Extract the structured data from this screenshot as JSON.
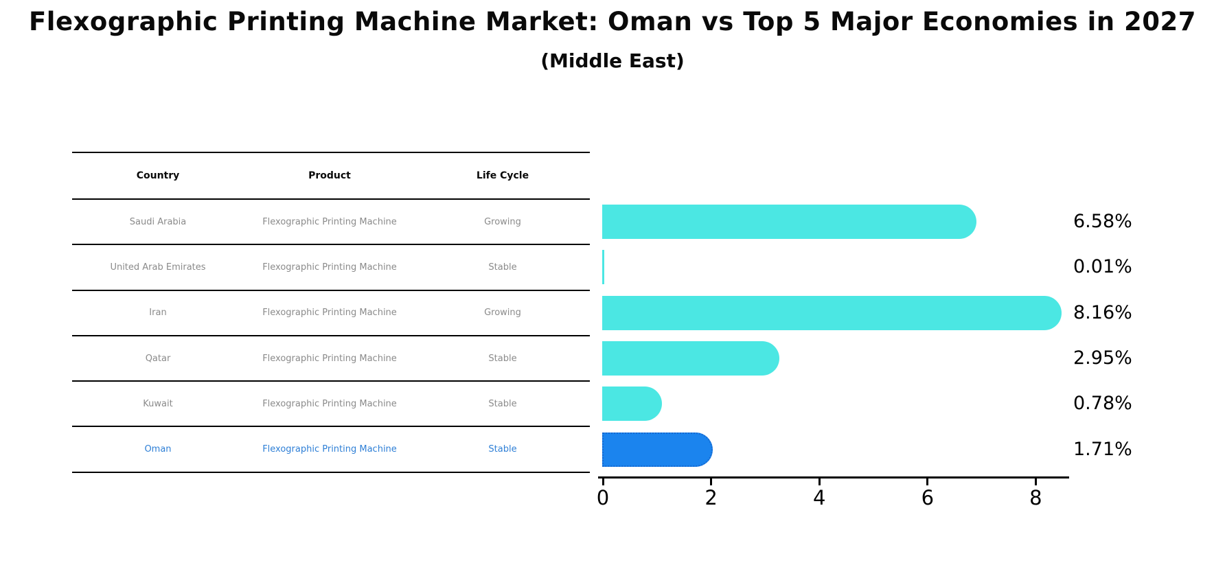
{
  "title": "Flexographic Printing Machine Market: Oman vs Top 5 Major Economies in 2027",
  "subtitle": "(Middle East)",
  "table": {
    "headers": [
      "Country",
      "Product",
      "Life Cycle"
    ],
    "rows": [
      {
        "country": "Saudi Arabia",
        "product": "Flexographic Printing Machine",
        "life_cycle": "Growing",
        "highlight": false
      },
      {
        "country": "United Arab Emirates",
        "product": "Flexographic Printing Machine",
        "life_cycle": "Stable",
        "highlight": false
      },
      {
        "country": "Iran",
        "product": "Flexographic Printing Machine",
        "life_cycle": "Growing",
        "highlight": false
      },
      {
        "country": "Qatar",
        "product": "Flexographic Printing Machine",
        "life_cycle": "Stable",
        "highlight": false
      },
      {
        "country": "Kuwait",
        "product": "Flexographic Printing Machine",
        "life_cycle": "Stable",
        "highlight": false
      },
      {
        "country": "Oman",
        "product": "Flexographic Printing Machine",
        "life_cycle": "Stable",
        "highlight": true
      }
    ]
  },
  "chart_data": {
    "type": "bar",
    "orientation": "horizontal",
    "title": "Flexographic Printing Machine Market: Oman vs Top 5 Major Economies in 2027",
    "subtitle": "(Middle East)",
    "categories": [
      "Saudi Arabia",
      "United Arab Emirates",
      "Iran",
      "Qatar",
      "Kuwait",
      "Oman"
    ],
    "values": [
      6.58,
      0.01,
      8.16,
      2.95,
      0.78,
      1.71
    ],
    "value_labels": [
      "6.58%",
      "0.01%",
      "8.16%",
      "2.95%",
      "0.78%",
      "1.71%"
    ],
    "xlabel": "",
    "ylabel": "",
    "xlim": [
      0,
      8.7
    ],
    "x_ticks": [
      0,
      2,
      4,
      6,
      8
    ],
    "grid": false,
    "legend_position": "none",
    "bar_color": "#4BE7E3",
    "highlight_bar_color": "#1B84EE",
    "highlight_index": 5,
    "highlight_text_color": "#2E7FD6",
    "row_text_color": "#8a8a8a"
  }
}
